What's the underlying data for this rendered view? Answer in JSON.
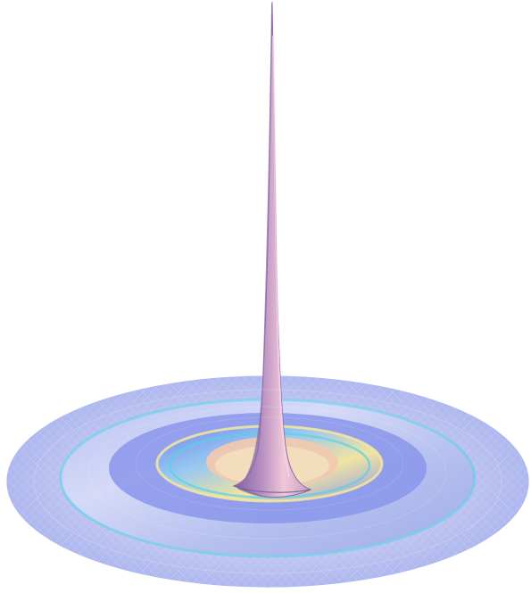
{
  "figure": {
    "kind": "3d-surface-plot",
    "shape": "radial sinc-like surface with a tall central spike and concentric ripples",
    "ring_count": 3,
    "colors": {
      "background": "#ffffff",
      "base": "#c9cdf0",
      "mesh": "#ffffff",
      "trough": "#7f8fe6",
      "highlight_cyan": "#53d3e8",
      "highlight_yellow": "#f5e79e",
      "spike_light": "#f0c8d9",
      "spike_dark": "#8a6da8"
    }
  }
}
